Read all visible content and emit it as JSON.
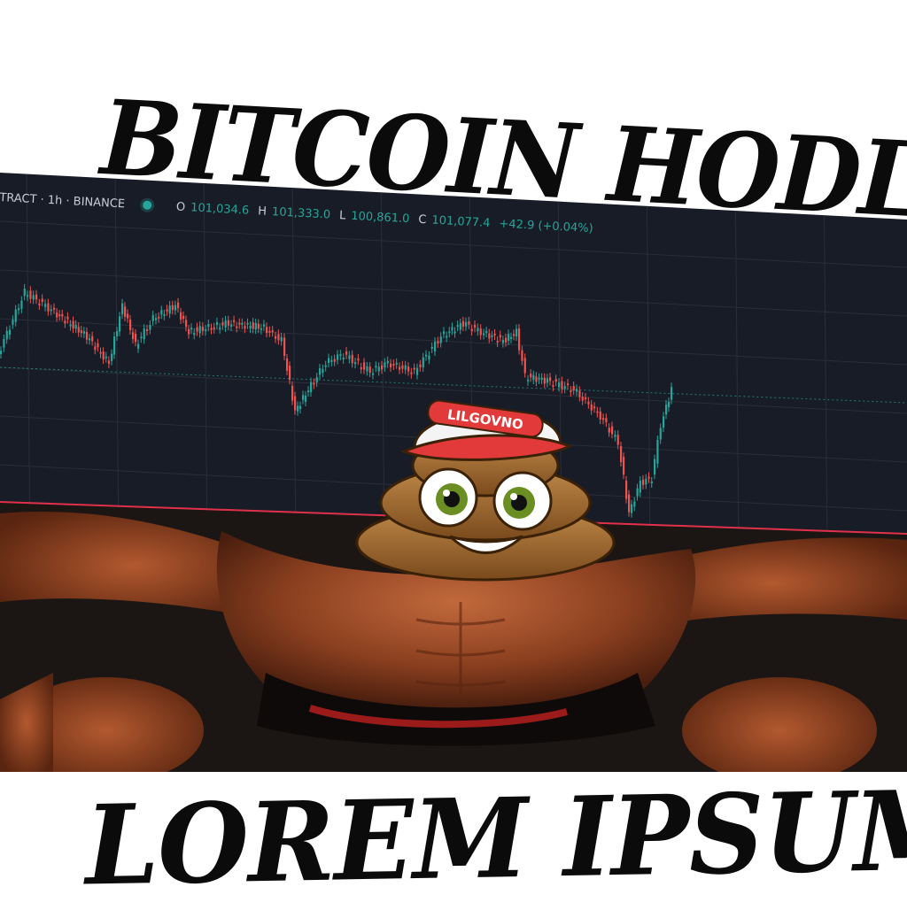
{
  "meme": {
    "top_text": "BITCOIN HODL",
    "bottom_text": "LOREM IPSUM"
  },
  "chart_header": {
    "symbol": "TRACT · 1h · BINANCE",
    "open_label": "O",
    "open_value": "101,034.6",
    "high_label": "H",
    "high_value": "101,333.0",
    "low_label": "L",
    "low_value": "100,861.0",
    "close_label": "C",
    "close_value": "101,077.4",
    "change": "+42.9 (+0.04%)"
  },
  "mascot": {
    "cap_text": "LILGOVNO"
  },
  "colors": {
    "chart_bg": "#181c27",
    "up": "#26a69a",
    "down": "#ef5350",
    "support_line": "#e0314b",
    "title_text": "#0b0b0b"
  }
}
